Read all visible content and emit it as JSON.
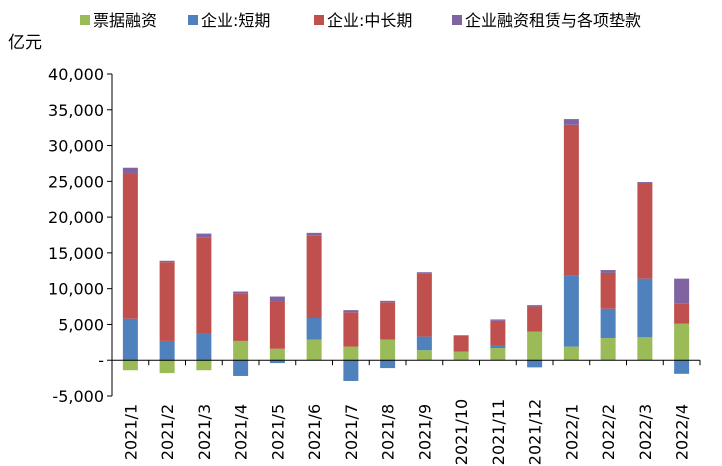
{
  "chart_data": {
    "type": "bar",
    "stacked": true,
    "unit_label": "亿元",
    "categories": [
      "2021/1",
      "2021/2",
      "2021/3",
      "2021/4",
      "2021/5",
      "2021/6",
      "2021/7",
      "2021/8",
      "2021/9",
      "2021/10",
      "2021/11",
      "2021/12",
      "2022/1",
      "2022/2",
      "2022/3",
      "2022/4"
    ],
    "series": [
      {
        "name": "票据融资",
        "color": "#9BBB59",
        "values": [
          -1400,
          -1800,
          -1400,
          2700,
          1600,
          2900,
          1900,
          2900,
          1400,
          1200,
          1700,
          4000,
          1900,
          3100,
          3200,
          5100
        ]
      },
      {
        "name": "企业:短期",
        "color": "#4F81BD",
        "values": [
          5800,
          2700,
          3800,
          -2200,
          -400,
          3000,
          -2900,
          -1100,
          1900,
          0,
          300,
          -1000,
          10000,
          4100,
          8200,
          -1900
        ]
      },
      {
        "name": "企业:中长期",
        "color": "#C0504D",
        "values": [
          20300,
          11000,
          13300,
          6600,
          6600,
          11500,
          4800,
          5200,
          8800,
          2200,
          3500,
          3500,
          21000,
          5000,
          13300,
          2800
        ]
      },
      {
        "name": "企业融资租赁与各项垫款",
        "color": "#8064A2",
        "values": [
          800,
          200,
          600,
          300,
          700,
          400,
          300,
          200,
          200,
          100,
          200,
          200,
          800,
          400,
          200,
          3500
        ]
      }
    ],
    "ylim": [
      -5000,
      40000
    ],
    "yticks": [
      "-5,000",
      "-",
      "5,000",
      "10,000",
      "15,000",
      "20,000",
      "25,000",
      "30,000",
      "35,000",
      "40,000"
    ],
    "ytick_values": [
      -5000,
      0,
      5000,
      10000,
      15000,
      20000,
      25000,
      30000,
      35000,
      40000
    ],
    "legend_position": "top"
  }
}
